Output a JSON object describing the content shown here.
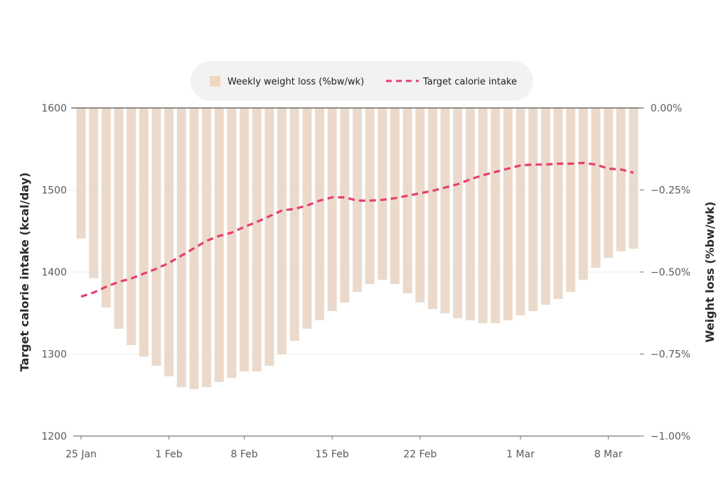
{
  "chart_data": {
    "type": "bar+line",
    "legend": {
      "placement": "top-center",
      "items": [
        "Weekly weight loss (%bw/wk)",
        "Target calorie intake"
      ]
    },
    "x_tick_labels": [
      "25 Jan",
      "1 Feb",
      "8 Feb",
      "15 Feb",
      "22 Feb",
      "1 Mar",
      "8 Mar"
    ],
    "x_tick_indices": [
      0,
      7,
      13,
      20,
      27,
      35,
      42
    ],
    "left_axis": {
      "label": "Target calorie intake (kcal/day)",
      "range": [
        1200,
        1600
      ],
      "ticks": [
        1200,
        1300,
        1400,
        1500,
        1600
      ],
      "tick_labels": [
        "1200",
        "1300",
        "1400",
        "1500",
        "1600"
      ]
    },
    "right_axis": {
      "label": "Weight loss (%bw/wk)",
      "range": [
        -1.0,
        0.0
      ],
      "ticks": [
        0,
        -0.25,
        -0.5,
        -0.75,
        -1.0
      ],
      "tick_labels": [
        "0.00%",
        "−0.25%",
        "−0.50%",
        "−0.75%",
        "−1.00%"
      ]
    },
    "grid": true,
    "series": [
      {
        "name": "Weekly weight loss (%bw/wk)",
        "type": "bar",
        "axis": "right",
        "color": "#ebdacb",
        "values": [
          -0.398,
          -0.519,
          -0.608,
          -0.673,
          -0.723,
          -0.758,
          -0.786,
          -0.818,
          -0.851,
          -0.857,
          -0.851,
          -0.835,
          -0.823,
          -0.803,
          -0.803,
          -0.786,
          -0.751,
          -0.71,
          -0.673,
          -0.647,
          -0.619,
          -0.593,
          -0.561,
          -0.537,
          -0.524,
          -0.537,
          -0.565,
          -0.593,
          -0.613,
          -0.626,
          -0.641,
          -0.647,
          -0.656,
          -0.656,
          -0.647,
          -0.632,
          -0.619,
          -0.6,
          -0.582,
          -0.561,
          -0.524,
          -0.487,
          -0.457,
          -0.437,
          -0.429
        ]
      },
      {
        "name": "Target calorie intake",
        "type": "line",
        "axis": "left",
        "style": "dashed",
        "color": "#e5406f",
        "values": [
          1370,
          1375,
          1382,
          1388,
          1392,
          1398,
          1404,
          1411,
          1420,
          1429,
          1438,
          1444,
          1448,
          1455,
          1461,
          1468,
          1475,
          1477,
          1481,
          1487,
          1491,
          1491,
          1487,
          1487,
          1488,
          1490,
          1493,
          1496,
          1499,
          1503,
          1507,
          1513,
          1518,
          1522,
          1526,
          1530,
          1531,
          1531,
          1532,
          1532,
          1533,
          1531,
          1526,
          1525,
          1521
        ]
      }
    ]
  }
}
